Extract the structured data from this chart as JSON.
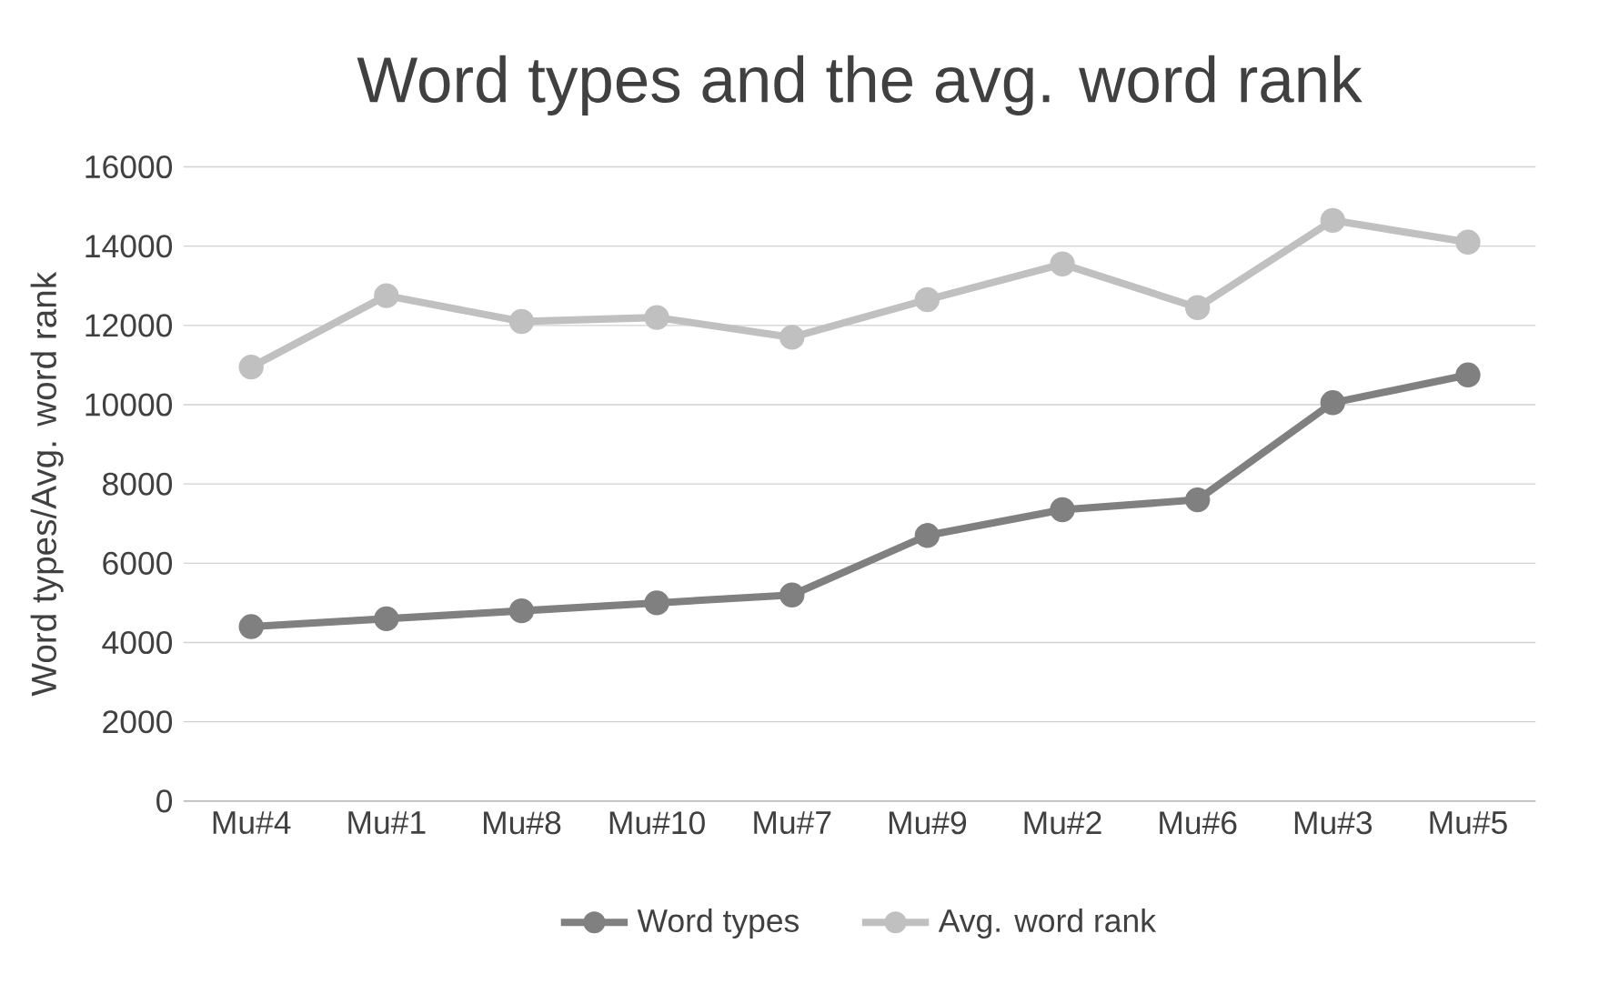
{
  "chart_data": {
    "type": "line",
    "title": "Word types and the avg. word rank",
    "ylabel": "Word types/Avg. word rank",
    "categories": [
      "Mu#4",
      "Mu#1",
      "Mu#8",
      "Mu#10",
      "Mu#7",
      "Mu#9",
      "Mu#2",
      "Mu#6",
      "Mu#3",
      "Mu#5"
    ],
    "series": [
      {
        "name": "Word types",
        "color": "#808080",
        "values": [
          4400,
          4600,
          4800,
          5000,
          5200,
          6700,
          7350,
          7600,
          10050,
          10750
        ]
      },
      {
        "name": "Avg. word rank",
        "color": "#c0c0c0",
        "values": [
          10950,
          12750,
          12100,
          12200,
          11700,
          12650,
          13550,
          12450,
          14650,
          14100
        ]
      }
    ],
    "ylim": [
      0,
      16000
    ],
    "yticks": [
      0,
      2000,
      4000,
      6000,
      8000,
      10000,
      12000,
      14000,
      16000
    ],
    "grid": "y",
    "legend": "bottom",
    "marker": "circle",
    "line_style": "solid"
  }
}
